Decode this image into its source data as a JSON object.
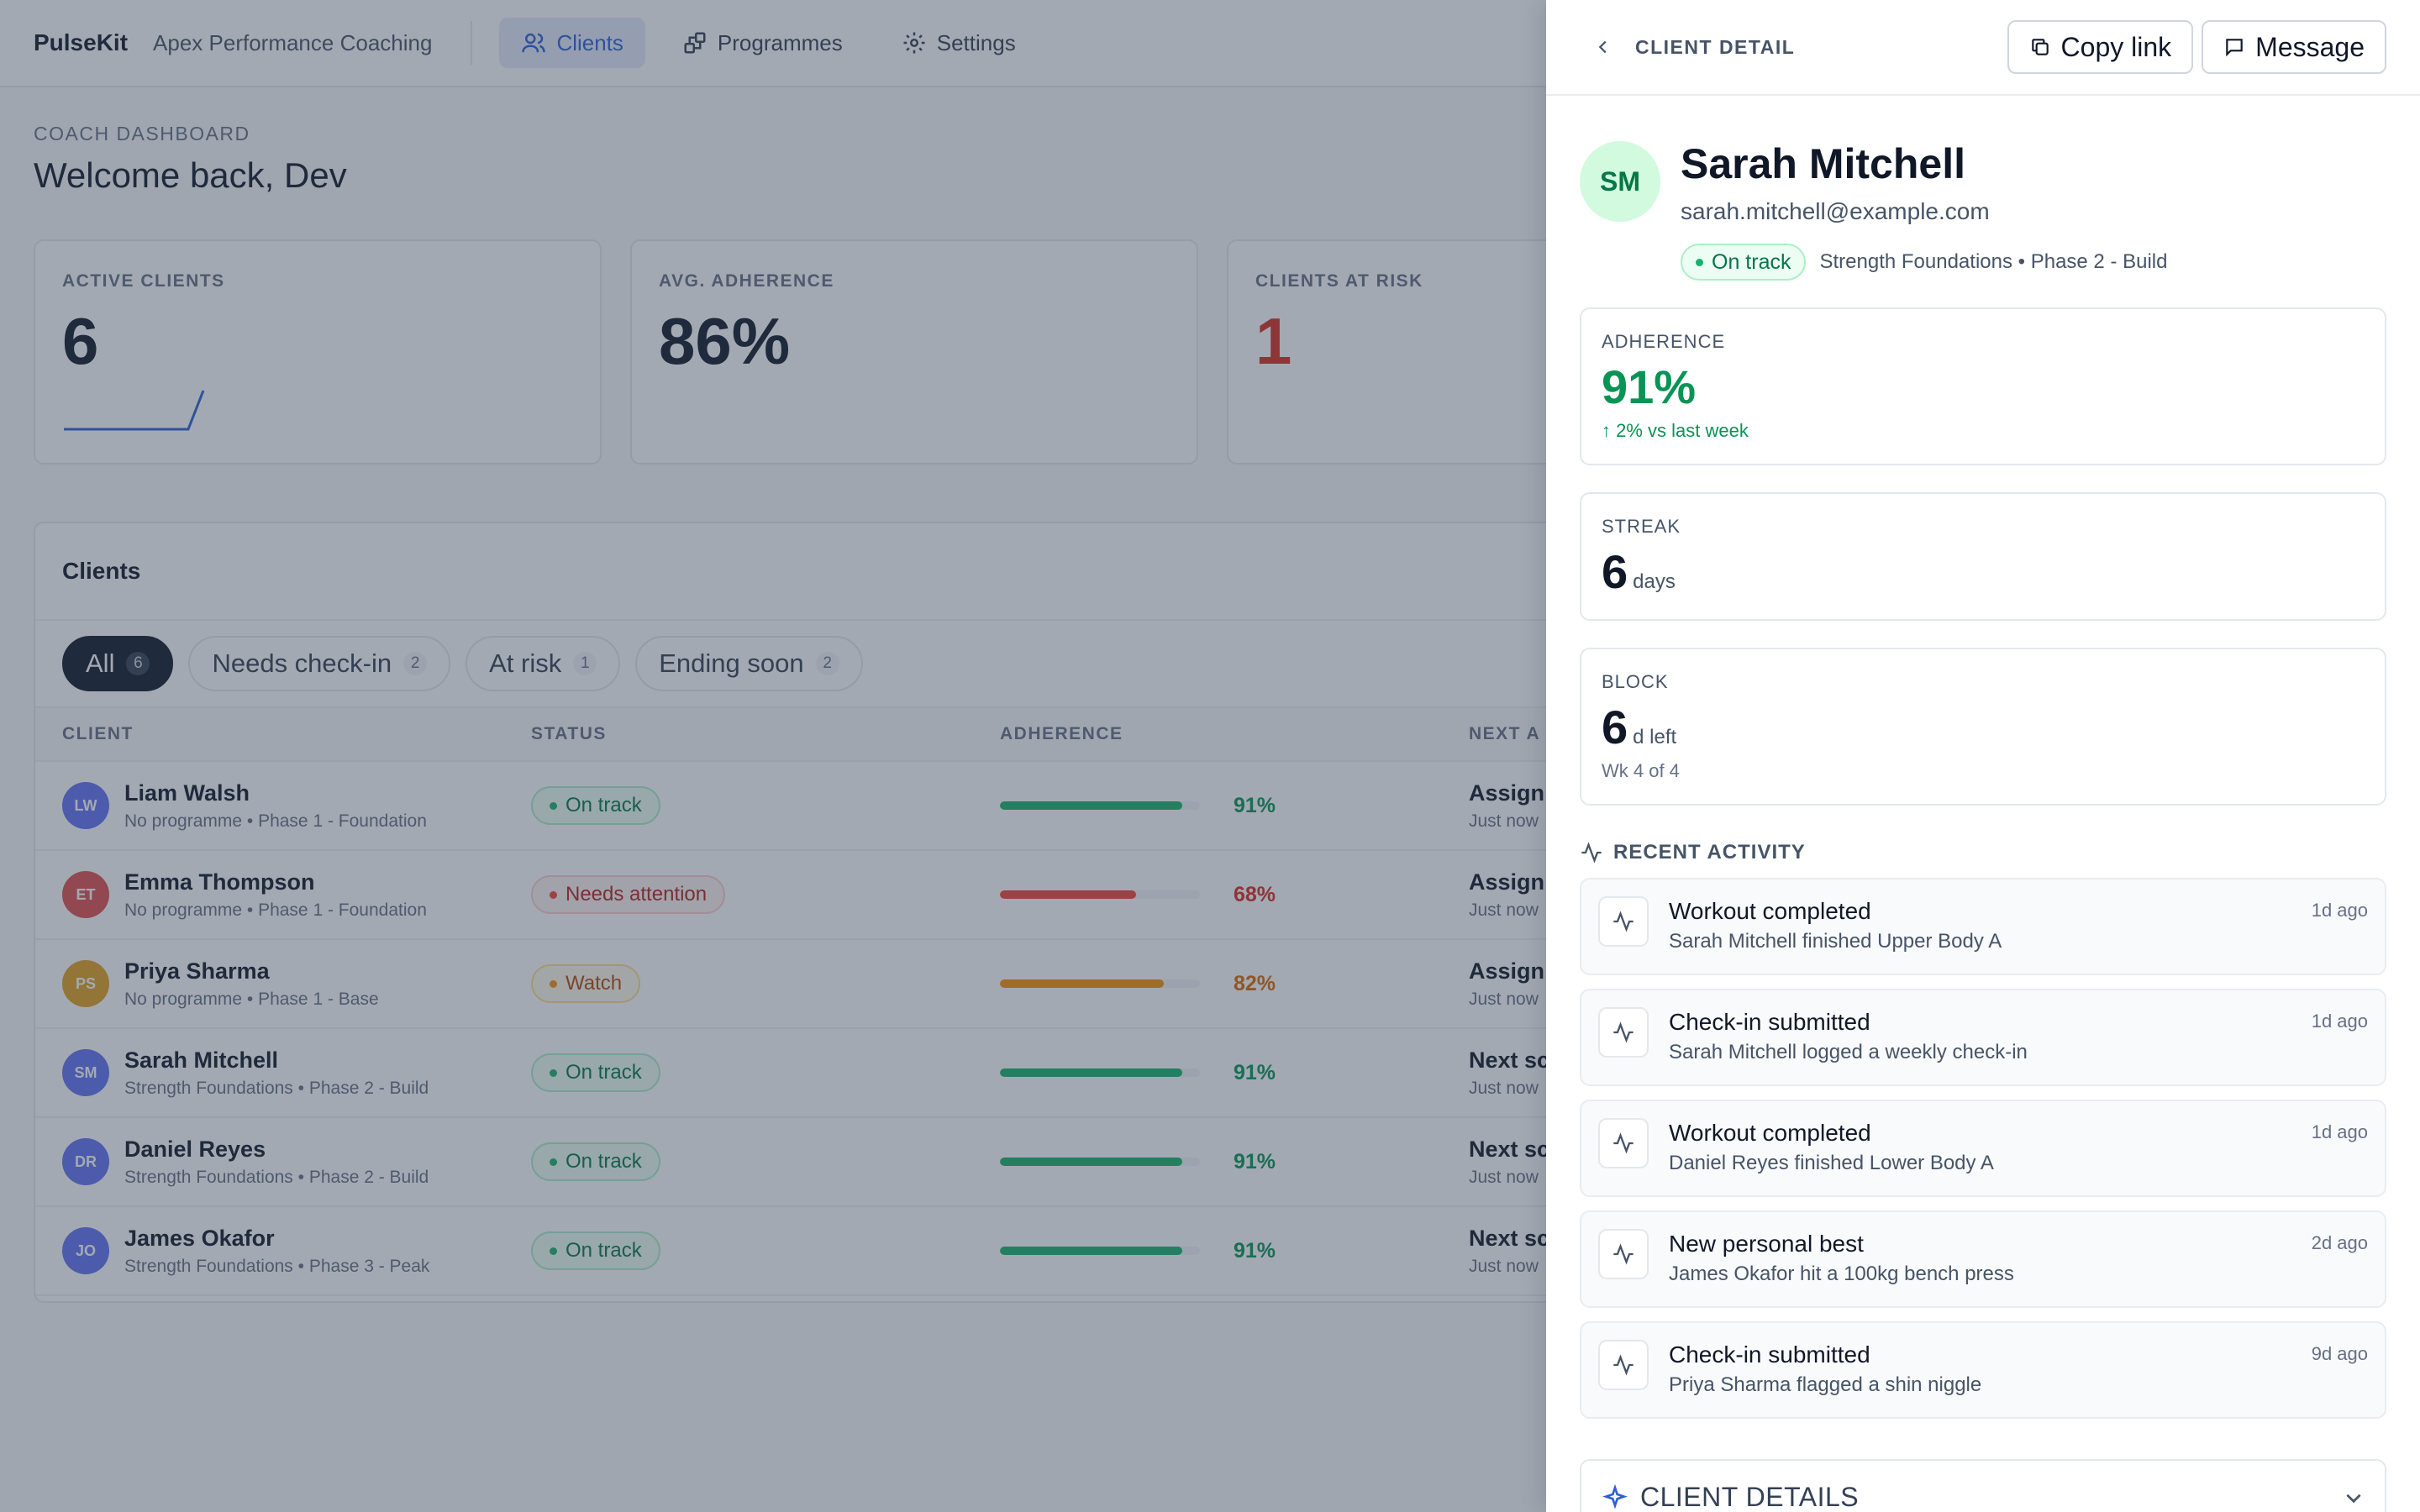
{
  "app": {
    "brand": "PulseKit",
    "org": "Apex Performance Coaching"
  },
  "nav": [
    {
      "label": "Clients",
      "icon": "users-icon",
      "active": true
    },
    {
      "label": "Programmes",
      "icon": "blocks-icon",
      "active": false
    },
    {
      "label": "Settings",
      "icon": "gear-icon",
      "active": false
    }
  ],
  "dashboard": {
    "eyebrow": "COACH DASHBOARD",
    "welcome": "Welcome back, Dev",
    "stats": [
      {
        "label": "ACTIVE CLIENTS",
        "value": "6"
      },
      {
        "label": "AVG. ADHERENCE",
        "value": "86%"
      },
      {
        "label": "CLIENTS AT RISK",
        "value": "1"
      }
    ]
  },
  "clients": {
    "title": "Clients",
    "filters": [
      {
        "label": "All",
        "count": "6",
        "active": true
      },
      {
        "label": "Needs check-in",
        "count": "2",
        "active": false
      },
      {
        "label": "At risk",
        "count": "1",
        "active": false
      },
      {
        "label": "Ending soon",
        "count": "2",
        "active": false
      }
    ],
    "columns": [
      "CLIENT",
      "STATUS",
      "ADHERENCE",
      "NEXT A"
    ],
    "rows": [
      {
        "initials": "LW",
        "name": "Liam Walsh",
        "programme": "No programme • Phase 1 - Foundation",
        "status": "On track",
        "tone": "green",
        "adherence": 91,
        "adherence_label": "91%",
        "next": "Assign p",
        "next_sub": "Just now",
        "avatar_color": "#6172f3"
      },
      {
        "initials": "ET",
        "name": "Emma Thompson",
        "programme": "No programme • Phase 1 - Foundation",
        "status": "Needs attention",
        "tone": "red",
        "adherence": 68,
        "adherence_label": "68%",
        "next": "Assign p",
        "next_sub": "Just now",
        "avatar_color": "#e04f4f"
      },
      {
        "initials": "PS",
        "name": "Priya Sharma",
        "programme": "No programme • Phase 1 - Base",
        "status": "Watch",
        "tone": "amber",
        "adherence": 82,
        "adherence_label": "82%",
        "next": "Assign p",
        "next_sub": "Just now",
        "avatar_color": "#e0a020"
      },
      {
        "initials": "SM",
        "name": "Sarah Mitchell",
        "programme": "Strength Foundations • Phase 2 - Build",
        "status": "On track",
        "tone": "green",
        "adherence": 91,
        "adherence_label": "91%",
        "next": "Next sc",
        "next_sub": "Just now",
        "avatar_color": "#6172f3"
      },
      {
        "initials": "DR",
        "name": "Daniel Reyes",
        "programme": "Strength Foundations • Phase 2 - Build",
        "status": "On track",
        "tone": "green",
        "adherence": 91,
        "adherence_label": "91%",
        "next": "Next sc",
        "next_sub": "Just now",
        "avatar_color": "#6172f3"
      },
      {
        "initials": "JO",
        "name": "James Okafor",
        "programme": "Strength Foundations • Phase 3 - Peak",
        "status": "On track",
        "tone": "green",
        "adherence": 91,
        "adherence_label": "91%",
        "next": "Next sc",
        "next_sub": "Just now",
        "avatar_color": "#6172f3"
      }
    ]
  },
  "drawer": {
    "title": "CLIENT DETAIL",
    "copy_link": "Copy link",
    "message": "Message",
    "client": {
      "initials": "SM",
      "name": "Sarah Mitchell",
      "email": "sarah.mitchell@example.com",
      "status": "On track",
      "programme": "Strength Foundations • Phase 2 - Build"
    },
    "metrics": {
      "adherence": {
        "label": "ADHERENCE",
        "value": "91%",
        "delta": "↑ 2% vs last week"
      },
      "streak": {
        "label": "STREAK",
        "value": "6",
        "unit": "days"
      },
      "block": {
        "label": "BLOCK",
        "value": "6",
        "unit": "d left",
        "sub": "Wk 4 of 4"
      }
    },
    "activity_title": "RECENT ACTIVITY",
    "activity": [
      {
        "title": "Workout completed",
        "desc": "Sarah Mitchell finished Upper Body A",
        "time": "1d ago"
      },
      {
        "title": "Check-in submitted",
        "desc": "Sarah Mitchell logged a weekly check-in",
        "time": "1d ago"
      },
      {
        "title": "Workout completed",
        "desc": "Daniel Reyes finished Lower Body A",
        "time": "1d ago"
      },
      {
        "title": "New personal best",
        "desc": "James Okafor hit a 100kg bench press",
        "time": "2d ago"
      },
      {
        "title": "Check-in submitted",
        "desc": "Priya Sharma flagged a shin niggle",
        "time": "9d ago"
      }
    ],
    "details_label": "CLIENT DETAILS"
  },
  "colors": {
    "accent": "#2f5fd3",
    "green": "#079455",
    "red": "#d92d20",
    "amber": "#f79009"
  }
}
